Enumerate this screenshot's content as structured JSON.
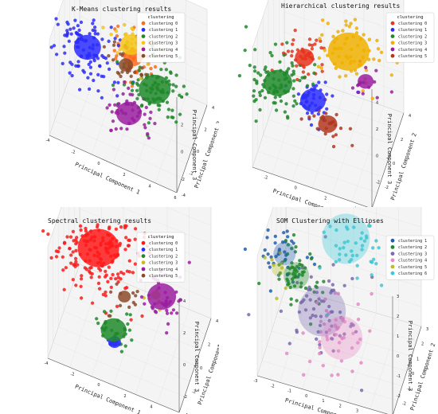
{
  "chart_data": [
    {
      "type": "scatter",
      "title": "K-Means clustering results",
      "xlabel": "Principal Component 1",
      "ylabel": "Principal Component 2",
      "zlabel": "Principal Component 3",
      "x_ticks": [
        "-4",
        "-2",
        "0",
        "2",
        "4",
        "6"
      ],
      "y_ticks": [
        "-4",
        "-2",
        "0",
        "2",
        "4"
      ],
      "z_ticks": [
        "-2",
        "0",
        "2",
        "4"
      ],
      "legend_title": "clustering",
      "legend_position": "upper-right",
      "series": [
        {
          "name": "clustering 0",
          "color": "#ff6a1a",
          "center": [
            1.2,
            0.6,
            1.2
          ],
          "spread": 0.9,
          "n": 50,
          "size": 12
        },
        {
          "name": "clustering 1",
          "color": "#2b2bff",
          "center": [
            -2.2,
            0.0,
            1.0
          ],
          "spread": 1.2,
          "n": 110,
          "size": 17
        },
        {
          "name": "clustering 2",
          "color": "#1f8a2a",
          "center": [
            3.2,
            -0.4,
            0.5
          ],
          "spread": 1.1,
          "n": 90,
          "size": 20
        },
        {
          "name": "clustering 3",
          "color": "#f5c518",
          "center": [
            1.0,
            0.8,
            1.9
          ],
          "spread": 0.8,
          "n": 25,
          "size": 14
        },
        {
          "name": "clustering 4",
          "color": "#9a1fa0",
          "center": [
            1.6,
            -1.8,
            -0.8
          ],
          "spread": 0.9,
          "n": 45,
          "size": 16
        },
        {
          "name": "clustering 5",
          "color": "#8b4a2a",
          "center": [
            0.7,
            0.4,
            0.6
          ],
          "spread": 0.8,
          "n": 30,
          "size": 9
        }
      ]
    },
    {
      "type": "scatter",
      "title": "Hierarchical clustering results",
      "xlabel": "Principal Component 1",
      "ylabel": "Principal Component 2",
      "zlabel": "Principal Component 3",
      "x_ticks": [
        "-2",
        "0",
        "2",
        "4"
      ],
      "y_ticks": [
        "-4",
        "-2",
        "0",
        "2",
        "4"
      ],
      "z_ticks": [
        "-4",
        "-2",
        "0",
        "2",
        "4"
      ],
      "legend_title": "clustering",
      "legend_position": "upper-right",
      "series": [
        {
          "name": "clustering 0",
          "color": "#e8341c",
          "center": [
            -0.8,
            0.8,
            0.8
          ],
          "spread": 0.8,
          "n": 45,
          "size": 12
        },
        {
          "name": "clustering 1",
          "color": "#2b2bff",
          "center": [
            0.2,
            -0.8,
            -0.6
          ],
          "spread": 0.8,
          "n": 45,
          "size": 16
        },
        {
          "name": "clustering 2",
          "color": "#1f8a2a",
          "center": [
            -2.2,
            -0.6,
            -0.4
          ],
          "spread": 1.1,
          "n": 95,
          "size": 18
        },
        {
          "name": "clustering 3",
          "color": "#f0b000",
          "center": [
            2.0,
            1.4,
            1.8
          ],
          "spread": 1.2,
          "n": 70,
          "size": 26
        },
        {
          "name": "clustering 4",
          "color": "#9a1fa0",
          "center": [
            3.3,
            0.8,
            0.6
          ],
          "spread": 0.6,
          "n": 15,
          "size": 10
        },
        {
          "name": "clustering 5",
          "color": "#b3371e",
          "center": [
            1.4,
            -1.6,
            -1.2
          ],
          "spread": 0.7,
          "n": 25,
          "size": 12
        }
      ]
    },
    {
      "type": "scatter",
      "title": "Spectral clustering results",
      "xlabel": "Principal Component 1",
      "ylabel": "Principal Component 2",
      "zlabel": "Principal Component 3",
      "x_ticks": [
        "-4",
        "-2",
        "0",
        "2",
        "4",
        "6"
      ],
      "y_ticks": [
        "-4",
        "-2",
        "0",
        "2",
        "4"
      ],
      "z_ticks": [
        "-2",
        "0",
        "2",
        "4"
      ],
      "legend_title": "clustering",
      "legend_position": "upper-right",
      "series": [
        {
          "name": "clustering 0",
          "color": "#ff1a1a",
          "center": [
            -1.6,
            0.8,
            1.2
          ],
          "spread": 1.6,
          "n": 230,
          "size": 26
        },
        {
          "name": "clustering 1",
          "color": "#2b2bff",
          "center": [
            0.6,
            -2.4,
            -1.6
          ],
          "spread": 0.4,
          "n": 10,
          "size": 8
        },
        {
          "name": "clustering 2",
          "color": "#1f8a2a",
          "center": [
            0.4,
            -2.0,
            -1.2
          ],
          "spread": 0.6,
          "n": 30,
          "size": 16
        },
        {
          "name": "clustering 3",
          "color": "#cdbb18",
          "center": [
            3.0,
            0.0,
            0.4
          ],
          "spread": 0.5,
          "n": 6,
          "size": 6
        },
        {
          "name": "clustering 4",
          "color": "#9a1fa0",
          "center": [
            3.4,
            0.2,
            0.3
          ],
          "spread": 0.8,
          "n": 40,
          "size": 18
        },
        {
          "name": "clustering 5",
          "color": "#8b4a2a",
          "center": [
            0.8,
            -0.6,
            0.0
          ],
          "spread": 0.6,
          "n": 12,
          "size": 8
        }
      ]
    },
    {
      "type": "scatter",
      "title": "SOM Clustering with Ellipses",
      "xlabel": "Principal Component 1",
      "ylabel": "Principal Component 2",
      "zlabel": "Principal Component 3",
      "x_ticks": [
        "-3",
        "-2",
        "-1",
        "0",
        "1",
        "2",
        "3",
        "4",
        "5"
      ],
      "y_ticks": [
        "-3",
        "-2",
        "-1",
        "0",
        "1",
        "2",
        "3"
      ],
      "z_ticks": [
        "-3",
        "-2",
        "-1",
        "0",
        "1",
        "2",
        "3"
      ],
      "legend_title": "",
      "legend_position": "upper-right",
      "series": [
        {
          "name": "clustering 1",
          "color": "#1f5fb0",
          "center": [
            -2.4,
            0.6,
            0.6
          ],
          "spread": 0.8,
          "n": 40,
          "size": 14
        },
        {
          "name": "clustering 2",
          "color": "#1f8a2a",
          "center": [
            -1.6,
            0.2,
            0.0
          ],
          "spread": 0.8,
          "n": 60,
          "size": 16
        },
        {
          "name": "clustering 3",
          "color": "#7a6ab0",
          "center": [
            0.2,
            -0.8,
            -0.6
          ],
          "spread": 1.2,
          "n": 60,
          "size": 30
        },
        {
          "name": "clustering 4",
          "color": "#e88ac8",
          "center": [
            1.6,
            -1.6,
            -1.0
          ],
          "spread": 1.1,
          "n": 50,
          "size": 26
        },
        {
          "name": "clustering 5",
          "color": "#b8c020",
          "center": [
            -2.6,
            0.0,
            0.2
          ],
          "spread": 0.6,
          "n": 8,
          "size": 8
        },
        {
          "name": "clustering 6",
          "color": "#3cc8d8",
          "center": [
            1.0,
            1.4,
            1.6
          ],
          "spread": 1.1,
          "n": 60,
          "size": 30
        }
      ]
    }
  ]
}
